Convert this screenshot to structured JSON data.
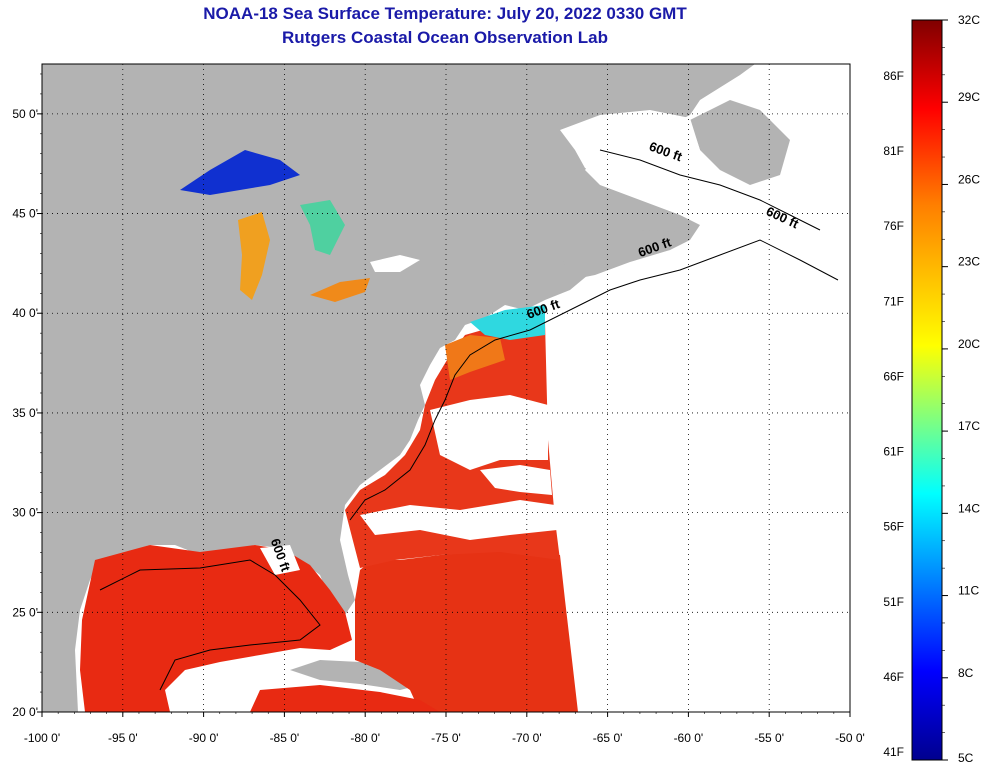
{
  "header": {
    "title": "NOAA-18 Sea Surface Temperature:  July 20, 2022 0330 GMT",
    "subtitle": "Rutgers Coastal Ocean Observation Lab"
  },
  "map": {
    "lon_range": [
      -100,
      -50
    ],
    "lat_range": [
      20,
      52.5
    ],
    "lon_ticks": [
      {
        "value": -100,
        "label": "-100 0'"
      },
      {
        "value": -95,
        "label": "-95 0'"
      },
      {
        "value": -90,
        "label": "-90 0'"
      },
      {
        "value": -85,
        "label": "-85 0'"
      },
      {
        "value": -80,
        "label": "-80 0'"
      },
      {
        "value": -75,
        "label": "-75 0'"
      },
      {
        "value": -70,
        "label": "-70 0'"
      },
      {
        "value": -65,
        "label": "-65 0'"
      },
      {
        "value": -60,
        "label": "-60 0'"
      },
      {
        "value": -55,
        "label": "-55 0'"
      },
      {
        "value": -50,
        "label": "-50 0'"
      }
    ],
    "lat_ticks": [
      {
        "value": 20,
        "label": "20 0'"
      },
      {
        "value": 25,
        "label": "25 0'"
      },
      {
        "value": 30,
        "label": "30 0'"
      },
      {
        "value": 35,
        "label": "35 0'"
      },
      {
        "value": 40,
        "label": "40 0'"
      },
      {
        "value": 45,
        "label": "45 0'"
      },
      {
        "value": 50,
        "label": "50 0'"
      }
    ],
    "contour_labels": [
      {
        "text": "600 ft",
        "lon": -61.5,
        "lat": 47.9
      },
      {
        "text": "600 ft",
        "lon": -54.3,
        "lat": 44.6
      },
      {
        "text": "600 ft",
        "lon": -62.0,
        "lat": 43.1
      },
      {
        "text": "600 ft",
        "lon": -68.9,
        "lat": 40.0
      },
      {
        "text": "600 ft",
        "lon": -85.5,
        "lat": 27.8
      }
    ],
    "colors": {
      "land": "#b3b3b3",
      "no_data": "#ffffff",
      "warm_sst": "#e82a12",
      "grid": "#000000"
    }
  },
  "colorbar": {
    "celsius_labels": [
      "32C",
      "29C",
      "26C",
      "23C",
      "20C",
      "17C",
      "14C",
      "11C",
      "8C",
      "5C"
    ],
    "fahrenheit_labels": [
      "86F",
      "81F",
      "76F",
      "71F",
      "66F",
      "61F",
      "56F",
      "51F",
      "46F",
      "41F"
    ],
    "min_c": 5,
    "max_c": 32
  }
}
